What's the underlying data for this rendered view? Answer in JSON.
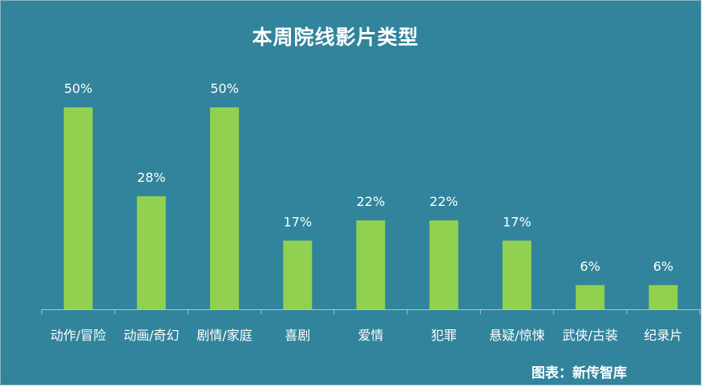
{
  "chart_data": {
    "type": "bar",
    "title": "本周院线影片类型",
    "categories": [
      "动作/冒险",
      "动画/奇幻",
      "剧情/家庭",
      "喜剧",
      "爱情",
      "犯罪",
      "悬疑/惊悚",
      "武侠/古装",
      "纪录片"
    ],
    "values": [
      50,
      28,
      50,
      17,
      22,
      22,
      17,
      6,
      6
    ],
    "data_labels": [
      "50%",
      "28%",
      "50%",
      "17%",
      "22%",
      "22%",
      "17%",
      "6%",
      "6%"
    ],
    "xlabel": "",
    "ylabel": "",
    "ylim": [
      0,
      50
    ],
    "grid": false,
    "legend": "none",
    "colors": {
      "background": "#31849b",
      "bar": "#92d050",
      "axis": "#bfbfbf",
      "text": "#ffffff"
    }
  },
  "source": "图表：新传智库"
}
